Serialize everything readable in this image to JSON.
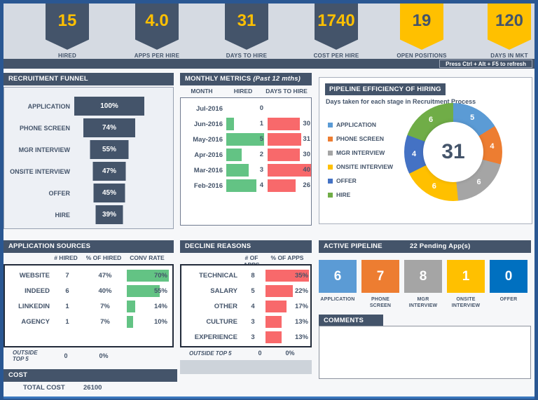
{
  "kpis": [
    {
      "value": "15",
      "label": "HIRED"
    },
    {
      "value": "4.0",
      "label": "APPS PER HIRE"
    },
    {
      "value": "31",
      "label": "DAYS TO HIRE"
    },
    {
      "value": "1740",
      "label": "COST PER HIRE"
    },
    {
      "value": "19",
      "label": "OPEN POSITIONS"
    },
    {
      "value": "120",
      "label": "DAYS IN MKT"
    }
  ],
  "refresh_hint": "Press Ctrl + Alt + F5 to refresh",
  "comments": {
    "title": "COMMENTS",
    "text": ""
  },
  "cost": {
    "title": "COST",
    "label": "TOTAL COST",
    "value": "26100"
  },
  "colors": {
    "slate": "#44546A",
    "yellow": "#FFC000",
    "green_bar": "#63C384",
    "red_bar": "#F8696B",
    "banner_bg": "#d5dae2",
    "border_blue": "#2a5792"
  },
  "chart_data": [
    {
      "id": "recruitment_funnel",
      "type": "bar",
      "title": "RECRUITMENT FUNNEL",
      "orientation": "horizontal-centered-funnel",
      "categories": [
        "APPLICATION",
        "PHONE SCREEN",
        "MGR INTERVIEW",
        "ONSITE INTERVIEW",
        "OFFER",
        "HIRE"
      ],
      "values": [
        100,
        74,
        55,
        47,
        45,
        39
      ],
      "unit": "%",
      "bar_color": "#44546A",
      "xlim": [
        0,
        100
      ]
    },
    {
      "id": "monthly_metrics",
      "type": "table",
      "title": "MONTHLY METRICS",
      "subtitle": "(Past 12 mths)",
      "columns": [
        "MONTH",
        "HIRED",
        "DAYS TO HIRE"
      ],
      "rows": [
        [
          "Jul-2016",
          0,
          null
        ],
        [
          "Jun-2016",
          1,
          30
        ],
        [
          "May-2016",
          5,
          31
        ],
        [
          "Apr-2016",
          2,
          30
        ],
        [
          "Mar-2016",
          3,
          40
        ],
        [
          "Feb-2016",
          4,
          26
        ]
      ],
      "hired_bar_color": "#63C384",
      "days_bar_color": "#F8696B",
      "hired_bar_max": 5,
      "days_bar_range": [
        26,
        40
      ]
    },
    {
      "id": "pipeline_efficiency",
      "type": "pie",
      "donut": true,
      "title": "PIPELINE EFFICIENCY OF HIRING",
      "subtitle": "Days taken for each stage in Recruitment Process",
      "center_total": 31,
      "labels": [
        "APPLICATION",
        "PHONE SCREEN",
        "MGR INTERVIEW",
        "ONSITE INTERVIEW",
        "OFFER",
        "HIRE"
      ],
      "values": [
        5,
        4,
        6,
        6,
        4,
        6
      ],
      "colors": [
        "#5B9BD5",
        "#ED7D31",
        "#A5A5A5",
        "#FFC000",
        "#4472C4",
        "#70AD47"
      ],
      "legend_position": "left"
    },
    {
      "id": "application_sources",
      "type": "table",
      "title": "APPLICATION SOURCES",
      "columns": [
        "",
        "# HIRED",
        "% OF HIRED",
        "CONV RATE"
      ],
      "rows": [
        [
          "WEBSITE",
          "7",
          "47%",
          "70%"
        ],
        [
          "INDEED",
          "6",
          "40%",
          "55%"
        ],
        [
          "LINKEDIN",
          "1",
          "7%",
          "14%"
        ],
        [
          "AGENCY",
          "1",
          "7%",
          "10%"
        ]
      ],
      "footer": [
        "OUTSIDE TOP 5",
        "0",
        "0%"
      ],
      "conv_bar_color": "#63C384"
    },
    {
      "id": "decline_reasons",
      "type": "table",
      "title": "DECLINE REASONS",
      "columns": [
        "",
        "# OF APPS",
        "% OF APPS"
      ],
      "rows": [
        [
          "TECHNICAL",
          "8",
          "35%"
        ],
        [
          "SALARY",
          "5",
          "22%"
        ],
        [
          "OTHER",
          "4",
          "17%"
        ],
        [
          "CULTURE",
          "3",
          "13%"
        ],
        [
          "EXPERIENCE",
          "3",
          "13%"
        ]
      ],
      "footer": [
        "OUTSIDE TOP 5",
        "0",
        "0%"
      ],
      "pct_bar_color": "#F8696B",
      "pct_bar_max": 35
    },
    {
      "id": "active_pipeline",
      "type": "bar",
      "title": "ACTIVE PIPELINE",
      "subtitle": "22 Pending App(s)",
      "categories": [
        "APPLICATION",
        "PHONE SCREEN",
        "MGR INTERVIEW",
        "ONSITE INTERVIEW",
        "OFFER"
      ],
      "values": [
        6,
        7,
        8,
        1,
        0
      ],
      "colors": [
        "#5B9BD5",
        "#ED7D31",
        "#A5A5A5",
        "#FFC000",
        "#0070C0"
      ]
    }
  ]
}
